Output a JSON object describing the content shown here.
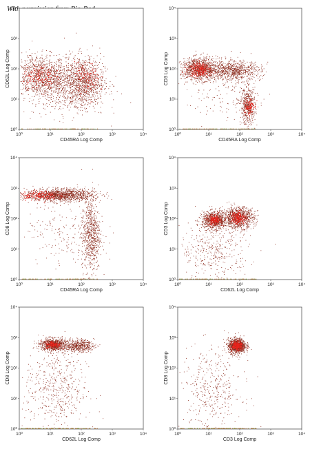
{
  "credit": "With permission from Bio-Rad",
  "chart_data": [
    {
      "type": "scatter",
      "xlabel": "CD45RA Log Comp",
      "ylabel": "CD62L Log Comp",
      "xscale": "log",
      "yscale": "log",
      "xlim": [
        1,
        10000
      ],
      "ylim": [
        1,
        10000
      ],
      "xticks": [
        "10⁰",
        "10¹",
        "10²",
        "10³",
        "10⁴"
      ],
      "yticks": [
        "10⁰",
        "10¹",
        "10²",
        "10³",
        "10⁴"
      ],
      "clusters": [
        {
          "cx": 4,
          "cy": 60,
          "sx": 0.45,
          "sy": 0.35,
          "n": 700
        },
        {
          "cx": 12,
          "cy": 40,
          "sx": 0.5,
          "sy": 0.35,
          "n": 500
        },
        {
          "cx": 120,
          "cy": 40,
          "sx": 0.32,
          "sy": 0.4,
          "n": 900
        },
        {
          "cx": 40,
          "cy": 25,
          "sx": 0.6,
          "sy": 0.5,
          "n": 400
        }
      ],
      "hot": [
        {
          "cx": 4,
          "cy": 60,
          "sx": 0.25,
          "sy": 0.2,
          "n": 120
        },
        {
          "cx": 150,
          "cy": 50,
          "sx": 0.2,
          "sy": 0.25,
          "n": 90
        }
      ]
    },
    {
      "type": "scatter",
      "xlabel": "CD45RA Log Comp",
      "ylabel": "CD3 Log Comp",
      "xscale": "log",
      "yscale": "log",
      "xlim": [
        1,
        10000
      ],
      "ylim": [
        1,
        10000
      ],
      "xticks": [
        "10⁰",
        "10¹",
        "10²",
        "10³",
        "10⁴"
      ],
      "yticks": [
        "10⁰",
        "10¹",
        "10²",
        "10³",
        "10⁴"
      ],
      "clusters": [
        {
          "cx": 5,
          "cy": 100,
          "sx": 0.3,
          "sy": 0.18,
          "n": 1000
        },
        {
          "cx": 60,
          "cy": 90,
          "sx": 0.45,
          "sy": 0.16,
          "n": 800
        },
        {
          "cx": 180,
          "cy": 6,
          "sx": 0.12,
          "sy": 0.3,
          "n": 500
        },
        {
          "cx": 30,
          "cy": 20,
          "sx": 0.6,
          "sy": 0.5,
          "n": 150
        }
      ],
      "hot": [
        {
          "cx": 5,
          "cy": 100,
          "sx": 0.18,
          "sy": 0.12,
          "n": 200
        },
        {
          "cx": 190,
          "cy": 6,
          "sx": 0.08,
          "sy": 0.15,
          "n": 80
        }
      ]
    },
    {
      "type": "scatter",
      "xlabel": "CD45RA Log Comp",
      "ylabel": "CD8 Log Comp",
      "xscale": "log",
      "yscale": "log",
      "xlim": [
        1,
        10000
      ],
      "ylim": [
        1,
        10000
      ],
      "xticks": [
        "10⁰",
        "10¹",
        "10²",
        "10³",
        "10⁴"
      ],
      "yticks": [
        "10⁰",
        "10¹",
        "10²",
        "10³",
        "10⁴"
      ],
      "clusters": [
        {
          "cx": 20,
          "cy": 600,
          "sx": 0.55,
          "sy": 0.1,
          "n": 1300
        },
        {
          "cx": 200,
          "cy": 30,
          "sx": 0.15,
          "sy": 0.6,
          "n": 700
        },
        {
          "cx": 30,
          "cy": 50,
          "sx": 0.6,
          "sy": 0.6,
          "n": 200
        }
      ],
      "hot": [
        {
          "cx": 4,
          "cy": 600,
          "sx": 0.3,
          "sy": 0.08,
          "n": 150
        }
      ]
    },
    {
      "type": "scatter",
      "xlabel": "CD62L Log Comp",
      "ylabel": "CD3 Log Comp",
      "xscale": "log",
      "yscale": "log",
      "xlim": [
        1,
        10000
      ],
      "ylim": [
        1,
        10000
      ],
      "xticks": [
        "10⁰",
        "10¹",
        "10²",
        "10³",
        "10⁴"
      ],
      "yticks": [
        "10⁰",
        "10¹",
        "10²",
        "10³",
        "10⁴"
      ],
      "clusters": [
        {
          "cx": 15,
          "cy": 90,
          "sx": 0.2,
          "sy": 0.14,
          "n": 800
        },
        {
          "cx": 90,
          "cy": 110,
          "sx": 0.25,
          "sy": 0.17,
          "n": 900
        },
        {
          "cx": 15,
          "cy": 10,
          "sx": 0.55,
          "sy": 0.5,
          "n": 400
        }
      ],
      "hot": [
        {
          "cx": 15,
          "cy": 90,
          "sx": 0.1,
          "sy": 0.08,
          "n": 160
        },
        {
          "cx": 90,
          "cy": 110,
          "sx": 0.12,
          "sy": 0.1,
          "n": 160
        }
      ]
    },
    {
      "type": "scatter",
      "xlabel": "CD62L Log Comp",
      "ylabel": "CD8 Log Comp",
      "xscale": "log",
      "yscale": "log",
      "xlim": [
        1,
        10000
      ],
      "ylim": [
        1,
        10000
      ],
      "xticks": [
        "10⁰",
        "10¹",
        "10²",
        "10³",
        "10⁴"
      ],
      "yticks": [
        "10⁰",
        "10¹",
        "10²",
        "10³",
        "10⁴"
      ],
      "clusters": [
        {
          "cx": 12,
          "cy": 600,
          "sx": 0.2,
          "sy": 0.1,
          "n": 800
        },
        {
          "cx": 80,
          "cy": 550,
          "sx": 0.25,
          "sy": 0.1,
          "n": 500
        },
        {
          "cx": 15,
          "cy": 20,
          "sx": 0.5,
          "sy": 0.7,
          "n": 500
        }
      ],
      "hot": [
        {
          "cx": 12,
          "cy": 600,
          "sx": 0.12,
          "sy": 0.06,
          "n": 120
        }
      ]
    },
    {
      "type": "scatter",
      "xlabel": "CD3 Log Comp",
      "ylabel": "CD8 Log Comp",
      "xscale": "log",
      "yscale": "log",
      "xlim": [
        1,
        10000
      ],
      "ylim": [
        1,
        10000
      ],
      "xticks": [
        "10⁰",
        "10¹",
        "10²",
        "10³",
        "10⁴"
      ],
      "yticks": [
        "10⁰",
        "10¹",
        "10²",
        "10³",
        "10⁴"
      ],
      "clusters": [
        {
          "cx": 80,
          "cy": 550,
          "sx": 0.14,
          "sy": 0.12,
          "n": 1000
        },
        {
          "cx": 12,
          "cy": 20,
          "sx": 0.5,
          "sy": 0.7,
          "n": 400
        }
      ],
      "hot": [
        {
          "cx": 80,
          "cy": 550,
          "sx": 0.08,
          "sy": 0.07,
          "n": 250
        }
      ]
    }
  ]
}
